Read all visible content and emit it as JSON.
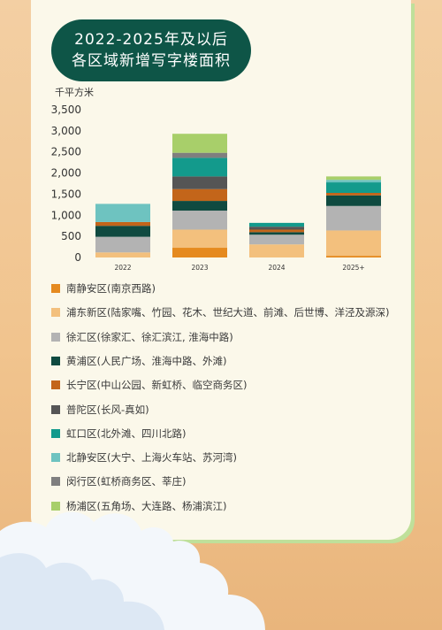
{
  "header": {
    "title_line1": "2022-2025年及以后",
    "title_line2": "各区域新增写字楼面积"
  },
  "chart_data": {
    "type": "bar",
    "stacked": true,
    "unit_label": "千平方米",
    "categories": [
      "2022",
      "2023",
      "2024",
      "2025+"
    ],
    "ylim": [
      0,
      3500
    ],
    "yticks": [
      "0",
      "500",
      "1,000",
      "1,500",
      "2,000",
      "2,500",
      "3,000",
      "3,500"
    ],
    "grid": false,
    "legend_position": "bottom",
    "series": [
      {
        "name": "南静安区(南京西路)",
        "color": "#e58a1f",
        "values": [
          0,
          230,
          0,
          40
        ]
      },
      {
        "name": "浦东新区(陆家嘴、竹园、花木、世纪大道、前滩、后世博、洋泾及源深)",
        "color": "#f3c07d",
        "values": [
          120,
          430,
          310,
          600
        ]
      },
      {
        "name": "徐汇区(徐家汇、徐汇滨江, 淮海中路)",
        "color": "#b3b3b3",
        "values": [
          370,
          450,
          230,
          580
        ]
      },
      {
        "name": "黄浦区(人民广场、淮海中路、外滩)",
        "color": "#0f4a40",
        "values": [
          260,
          230,
          60,
          250
        ]
      },
      {
        "name": "长宁区(中山公园、新虹桥、临空商务区)",
        "color": "#c3651a",
        "values": [
          90,
          280,
          60,
          60
        ]
      },
      {
        "name": "普陀区(长风-真如)",
        "color": "#555555",
        "values": [
          0,
          300,
          70,
          0
        ]
      },
      {
        "name": "虹口区(北外滩、四川北路)",
        "color": "#139a8c",
        "values": [
          0,
          440,
          90,
          250
        ]
      },
      {
        "name": "北静安区(大宁、上海火车站、苏河湾)",
        "color": "#6ec3c0",
        "values": [
          430,
          0,
          0,
          60
        ]
      },
      {
        "name": "闵行区(虹桥商务区、莘庄)",
        "color": "#7f7f7f",
        "values": [
          0,
          120,
          0,
          0
        ]
      },
      {
        "name": "杨浦区(五角场、大连路、杨浦滨江)",
        "color": "#a8cf6a",
        "values": [
          0,
          450,
          0,
          80
        ]
      }
    ]
  }
}
